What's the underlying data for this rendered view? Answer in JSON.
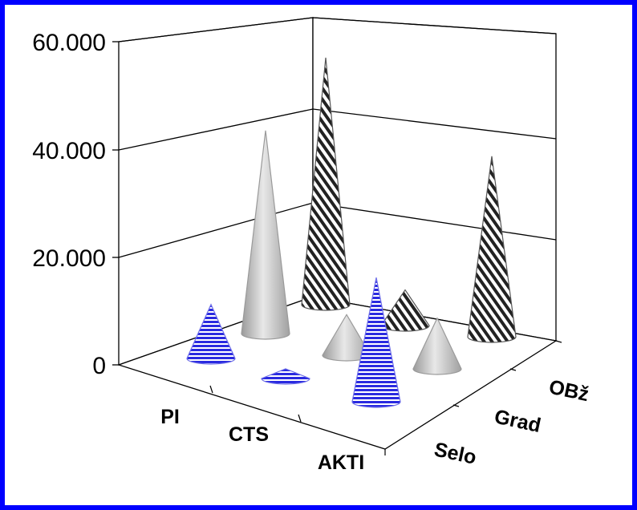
{
  "chart_data": {
    "type": "bar",
    "style": "3d-cone",
    "categories": [
      "PI",
      "CTS",
      "AKTI"
    ],
    "depth_categories": [
      "Selo",
      "Grad",
      "OBž"
    ],
    "series": [
      {
        "name": "Selo",
        "values": [
          10000,
          1800,
          23000
        ],
        "pattern": "horizontal-lines",
        "color": "#2a2ae0"
      },
      {
        "name": "Grad",
        "values": [
          40000,
          8000,
          10000
        ],
        "pattern": "solid-gray",
        "color": "#bdbdbd"
      },
      {
        "name": "OBž",
        "values": [
          52000,
          7500,
          38000
        ],
        "pattern": "diagonal-stripes",
        "color": "#333333"
      }
    ],
    "yaxis": {
      "min": 0,
      "max": 60000,
      "ticks": [
        "0",
        "20.000",
        "40.000",
        "60.000"
      ],
      "tick_values": [
        0,
        20000,
        40000,
        60000
      ]
    },
    "grid": true,
    "legend": "none"
  }
}
